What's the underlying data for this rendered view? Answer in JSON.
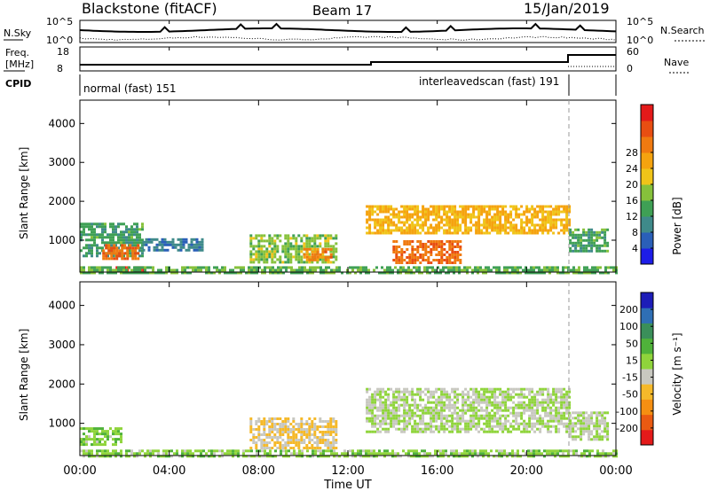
{
  "header": {
    "station": "Blackstone (fitACF)",
    "beam": "Beam 17",
    "date": "15/Jan/2019"
  },
  "side_labels": {
    "nsky": "N.Sky",
    "nsearch": "N.Search",
    "freq": "Freq.",
    "freq_unit": "[MHz]",
    "nave": "Nave",
    "cpid": "CPID"
  },
  "nsky_ticks": [
    "10^5",
    "10^0"
  ],
  "freq_ticks": [
    "18",
    "8"
  ],
  "nave_ticks": [
    "60",
    "0"
  ],
  "cpid_segments": [
    {
      "label": "normal (fast) 151",
      "start_hour": 0,
      "end_hour": 21.9
    },
    {
      "label": "interleavedscan (fast) 191",
      "start_hour": 21.9,
      "end_hour": 24
    }
  ],
  "xaxis": {
    "label": "Time UT",
    "ticks": [
      "00:00",
      "04:00",
      "08:00",
      "12:00",
      "16:00",
      "20:00",
      "00:00"
    ]
  },
  "power_panel": {
    "ylabel": "Slant Range [km]",
    "yticks": [
      "1000",
      "2000",
      "3000",
      "4000"
    ],
    "colorbar_label": "Power [dB]",
    "colorbar_ticks": [
      "4",
      "8",
      "12",
      "16",
      "20",
      "24",
      "28"
    ],
    "colors": [
      "#1d1de8",
      "#2a5fb8",
      "#3f8a8a",
      "#3fa055",
      "#86c13b",
      "#f0c419",
      "#f5a30f",
      "#f07a10",
      "#e84e12",
      "#e41a1a"
    ]
  },
  "velocity_panel": {
    "ylabel": "Slant Range [km]",
    "yticks": [
      "1000",
      "2000",
      "3000",
      "4000"
    ],
    "colorbar_label": "Velocity [m s⁻¹]",
    "colorbar_ticks": [
      "200",
      "100",
      "50",
      "15",
      "-15",
      "-50",
      "-100",
      "-200"
    ],
    "colors": [
      "#1d1db8",
      "#2f6fb5",
      "#3a8f5a",
      "#4fb23a",
      "#8fd43b",
      "#c8c8c0",
      "#f5b92a",
      "#f58f12",
      "#ea5a12",
      "#e41a1a"
    ]
  },
  "chart_data": {
    "type": "heatmap",
    "x_range_hours": [
      0,
      24
    ],
    "y_range_km": [
      180,
      4600
    ],
    "power_echo_regions": [
      {
        "t0": 0.0,
        "t1": 2.8,
        "r0": 600,
        "r1": 1450,
        "db": 10
      },
      {
        "t0": 1.0,
        "t1": 2.6,
        "r0": 500,
        "r1": 900,
        "db": 26
      },
      {
        "t0": 1.6,
        "t1": 2.8,
        "r0": 200,
        "r1": 330,
        "db": 30
      },
      {
        "t0": 2.8,
        "t1": 5.5,
        "r0": 750,
        "r1": 1050,
        "db": 6
      },
      {
        "t0": 7.6,
        "t1": 11.5,
        "r0": 450,
        "r1": 1150,
        "db": 14
      },
      {
        "t0": 10.0,
        "t1": 11.2,
        "r0": 500,
        "r1": 800,
        "db": 24
      },
      {
        "t0": 12.8,
        "t1": 21.9,
        "r0": 1200,
        "r1": 1900,
        "db": 20
      },
      {
        "t0": 14.0,
        "t1": 17.0,
        "r0": 450,
        "r1": 1000,
        "db": 26
      },
      {
        "t0": 21.9,
        "t1": 23.6,
        "r0": 700,
        "r1": 1300,
        "db": 10
      },
      {
        "t0": 0.0,
        "t1": 24.0,
        "r0": 180,
        "r1": 330,
        "db": 12
      }
    ],
    "velocity_echo_regions": [
      {
        "t0": 0.0,
        "t1": 1.8,
        "r0": 450,
        "r1": 900,
        "v": 40
      },
      {
        "t0": 7.6,
        "t1": 11.5,
        "r0": 400,
        "r1": 1150,
        "v": -60
      },
      {
        "t0": 12.8,
        "t1": 21.9,
        "r0": 800,
        "r1": 1900,
        "v": 0
      },
      {
        "t0": 21.9,
        "t1": 23.6,
        "r0": 600,
        "r1": 1300,
        "v": 0
      },
      {
        "t0": 0.0,
        "t1": 24.0,
        "r0": 180,
        "r1": 330,
        "v": 30
      }
    ]
  }
}
